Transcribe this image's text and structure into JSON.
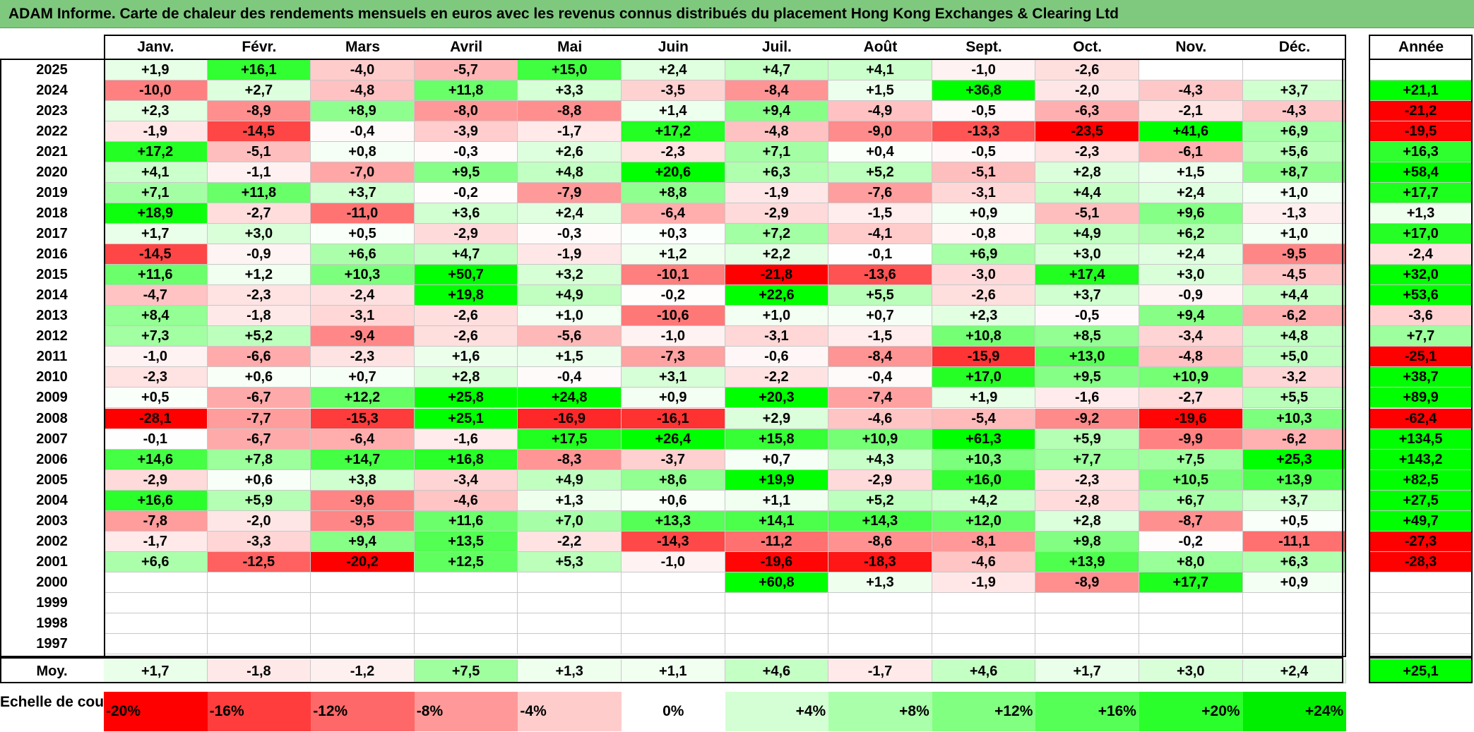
{
  "title": "ADAM Informe. Carte de chaleur des rendements mensuels en euros avec les revenus connus distribués du placement Hong Kong Exchanges & Clearing Ltd",
  "chart_data": {
    "type": "heatmap",
    "months": [
      "Janv.",
      "Févr.",
      "Mars",
      "Avril",
      "Mai",
      "Juin",
      "Juil.",
      "Août",
      "Sept.",
      "Oct.",
      "Nov.",
      "Déc."
    ],
    "annual_header": "Année",
    "years": [
      "2025",
      "2024",
      "2023",
      "2022",
      "2021",
      "2020",
      "2019",
      "2018",
      "2017",
      "2016",
      "2015",
      "2014",
      "2013",
      "2012",
      "2011",
      "2010",
      "2009",
      "2008",
      "2007",
      "2006",
      "2005",
      "2004",
      "2003",
      "2002",
      "2001",
      "2000",
      "1999",
      "1998",
      "1997"
    ],
    "values": [
      [
        "+1,9",
        "+16,1",
        "-4,0",
        "-5,7",
        "+15,0",
        "+2,4",
        "+4,7",
        "+4,1",
        "-1,0",
        "-2,6",
        "",
        ""
      ],
      [
        "-10,0",
        "+2,7",
        "-4,8",
        "+11,8",
        "+3,3",
        "-3,5",
        "-8,4",
        "+1,5",
        "+36,8",
        "-2,0",
        "-4,3",
        "+3,7"
      ],
      [
        "+2,3",
        "-8,9",
        "+8,9",
        "-8,0",
        "-8,8",
        "+1,4",
        "+9,4",
        "-4,9",
        "-0,5",
        "-6,3",
        "-2,1",
        "-4,3"
      ],
      [
        "-1,9",
        "-14,5",
        "-0,4",
        "-3,9",
        "-1,7",
        "+17,2",
        "-4,8",
        "-9,0",
        "-13,3",
        "-23,5",
        "+41,6",
        "+6,9"
      ],
      [
        "+17,2",
        "-5,1",
        "+0,8",
        "-0,3",
        "+2,6",
        "-2,3",
        "+7,1",
        "+0,4",
        "-0,5",
        "-2,3",
        "-6,1",
        "+5,6"
      ],
      [
        "+4,1",
        "-1,1",
        "-7,0",
        "+9,5",
        "+4,8",
        "+20,6",
        "+6,3",
        "+5,2",
        "-5,1",
        "+2,8",
        "+1,5",
        "+8,7"
      ],
      [
        "+7,1",
        "+11,8",
        "+3,7",
        "-0,2",
        "-7,9",
        "+8,8",
        "-1,9",
        "-7,6",
        "-3,1",
        "+4,4",
        "+2,4",
        "+1,0"
      ],
      [
        "+18,9",
        "-2,7",
        "-11,0",
        "+3,6",
        "+2,4",
        "-6,4",
        "-2,9",
        "-1,5",
        "+0,9",
        "-5,1",
        "+9,6",
        "-1,3"
      ],
      [
        "+1,7",
        "+3,0",
        "+0,5",
        "-2,9",
        "-0,3",
        "+0,3",
        "+7,2",
        "-4,1",
        "-0,8",
        "+4,9",
        "+6,2",
        "+1,0"
      ],
      [
        "-14,5",
        "-0,9",
        "+6,6",
        "+4,7",
        "-1,9",
        "+1,2",
        "+2,2",
        "-0,1",
        "+6,9",
        "+3,0",
        "+2,4",
        "-9,5"
      ],
      [
        "+11,6",
        "+1,2",
        "+10,3",
        "+50,7",
        "+3,2",
        "-10,1",
        "-21,8",
        "-13,6",
        "-3,0",
        "+17,4",
        "+3,0",
        "-4,5"
      ],
      [
        "-4,7",
        "-2,3",
        "-2,4",
        "+19,8",
        "+4,9",
        "-0,2",
        "+22,6",
        "+5,5",
        "-2,6",
        "+3,7",
        "-0,9",
        "+4,4"
      ],
      [
        "+8,4",
        "-1,8",
        "-3,1",
        "-2,6",
        "+1,0",
        "-10,6",
        "+1,0",
        "+0,7",
        "+2,3",
        "-0,5",
        "+9,4",
        "-6,2"
      ],
      [
        "+7,3",
        "+5,2",
        "-9,4",
        "-2,6",
        "-5,6",
        "-1,0",
        "-3,1",
        "-1,5",
        "+10,8",
        "+8,5",
        "-3,4",
        "+4,8"
      ],
      [
        "-1,0",
        "-6,6",
        "-2,3",
        "+1,6",
        "+1,5",
        "-7,3",
        "-0,6",
        "-8,4",
        "-15,9",
        "+13,0",
        "-4,8",
        "+5,0"
      ],
      [
        "-2,3",
        "+0,6",
        "+0,7",
        "+2,8",
        "-0,4",
        "+3,1",
        "-2,2",
        "-0,4",
        "+17,0",
        "+9,5",
        "+10,9",
        "-3,2"
      ],
      [
        "+0,5",
        "-6,7",
        "+12,2",
        "+25,8",
        "+24,8",
        "+0,9",
        "+20,3",
        "-7,4",
        "+1,9",
        "-1,6",
        "-2,7",
        "+5,5"
      ],
      [
        "-28,1",
        "-7,7",
        "-15,3",
        "+25,1",
        "-16,9",
        "-16,1",
        "+2,9",
        "-4,6",
        "-5,4",
        "-9,2",
        "-19,6",
        "+10,3"
      ],
      [
        "-0,1",
        "-6,7",
        "-6,4",
        "-1,6",
        "+17,5",
        "+26,4",
        "+15,8",
        "+10,9",
        "+61,3",
        "+5,9",
        "-9,9",
        "-6,2"
      ],
      [
        "+14,6",
        "+7,8",
        "+14,7",
        "+16,8",
        "-8,3",
        "-3,7",
        "+0,7",
        "+4,3",
        "+10,3",
        "+7,7",
        "+7,5",
        "+25,3"
      ],
      [
        "-2,9",
        "+0,6",
        "+3,8",
        "-3,4",
        "+4,9",
        "+8,6",
        "+19,9",
        "-2,9",
        "+16,0",
        "-2,3",
        "+10,5",
        "+13,9"
      ],
      [
        "+16,6",
        "+5,9",
        "-9,6",
        "-4,6",
        "+1,3",
        "+0,6",
        "+1,1",
        "+5,2",
        "+4,2",
        "-2,8",
        "+6,7",
        "+3,7"
      ],
      [
        "-7,8",
        "-2,0",
        "-9,5",
        "+11,6",
        "+7,0",
        "+13,3",
        "+14,1",
        "+14,3",
        "+12,0",
        "+2,8",
        "-8,7",
        "+0,5"
      ],
      [
        "-1,7",
        "-3,3",
        "+9,4",
        "+13,5",
        "-2,2",
        "-14,3",
        "-11,2",
        "-8,6",
        "-8,1",
        "+9,8",
        "-0,2",
        "-11,1"
      ],
      [
        "+6,6",
        "-12,5",
        "-20,2",
        "+12,5",
        "+5,3",
        "-1,0",
        "-19,6",
        "-18,3",
        "-4,6",
        "+13,9",
        "+8,0",
        "+6,3"
      ],
      [
        "",
        "",
        "",
        "",
        "",
        "",
        "+60,8",
        "+1,3",
        "-1,9",
        "-8,9",
        "+17,7",
        "+0,9"
      ],
      [
        "",
        "",
        "",
        "",
        "",
        "",
        "",
        "",
        "",
        "",
        "",
        ""
      ],
      [
        "",
        "",
        "",
        "",
        "",
        "",
        "",
        "",
        "",
        "",
        "",
        ""
      ],
      [
        "",
        "",
        "",
        "",
        "",
        "",
        "",
        "",
        "",
        "",
        "",
        ""
      ]
    ],
    "annual": [
      "",
      "+21,1",
      "-21,2",
      "-19,5",
      "+16,3",
      "+58,4",
      "+17,7",
      "+1,3",
      "+17,0",
      "-2,4",
      "+32,0",
      "+53,6",
      "-3,6",
      "+7,7",
      "-25,1",
      "+38,7",
      "+89,9",
      "-62,4",
      "+134,5",
      "+143,2",
      "+82,5",
      "+27,5",
      "+49,7",
      "-27,3",
      "-28,3",
      "",
      "",
      "",
      ""
    ],
    "average_label": "Moy.",
    "average": [
      "+1,7",
      "-1,8",
      "-1,2",
      "+7,5",
      "+1,3",
      "+1,1",
      "+4,6",
      "-1,7",
      "+4,6",
      "+1,7",
      "+3,0",
      "+2,4"
    ],
    "average_annual": "+25,1",
    "color_scale": {
      "label": "Echelle de couleur",
      "steps": [
        {
          "label": "-20%",
          "value": -20,
          "color": "#ff0000"
        },
        {
          "label": "-16%",
          "value": -16,
          "color": "#ff3d3d"
        },
        {
          "label": "-12%",
          "value": -12,
          "color": "#ff6868"
        },
        {
          "label": "-8%",
          "value": -8,
          "color": "#ff9999"
        },
        {
          "label": "-4%",
          "value": -4,
          "color": "#ffcccc"
        },
        {
          "label": "0%",
          "value": 0,
          "color": "#ffffff"
        },
        {
          "label": "+4%",
          "value": 4,
          "color": "#d4ffd4"
        },
        {
          "label": "+8%",
          "value": 8,
          "color": "#aaffaa"
        },
        {
          "label": "+12%",
          "value": 12,
          "color": "#80ff80"
        },
        {
          "label": "+16%",
          "value": 16,
          "color": "#55ff55"
        },
        {
          "label": "+20%",
          "value": 20,
          "color": "#2bff2b"
        },
        {
          "label": "+24%",
          "value": 24,
          "color": "#00ee00"
        }
      ]
    }
  }
}
